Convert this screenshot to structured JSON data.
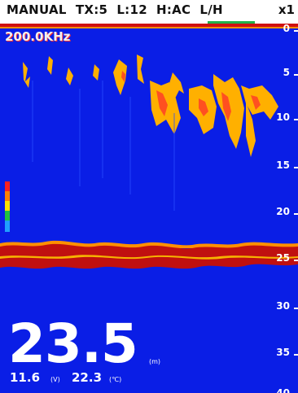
{
  "status": {
    "mode": "MANUAL",
    "tx": "TX:5",
    "level": "L:12",
    "heave": "H:AC",
    "range": "L/H",
    "zoom": "x1"
  },
  "frequency": "200.0KHz",
  "depth_scale": [
    "0",
    "5",
    "10",
    "15",
    "20",
    "25",
    "30",
    "35",
    "40"
  ],
  "depth": {
    "value": "23.5",
    "unit": "(m)"
  },
  "voltage": {
    "value": "11.6",
    "unit": "(V)"
  },
  "temperature": {
    "value": "22.3",
    "unit": "(℃)"
  },
  "colors": {
    "background": "#0a1ee6",
    "bottom_echo": "#c01010",
    "strong_echo": "#ffb000",
    "gain_bar": [
      "#ff2020",
      "#ff8000",
      "#ffe000",
      "#20c040",
      "#20a0ff"
    ]
  }
}
